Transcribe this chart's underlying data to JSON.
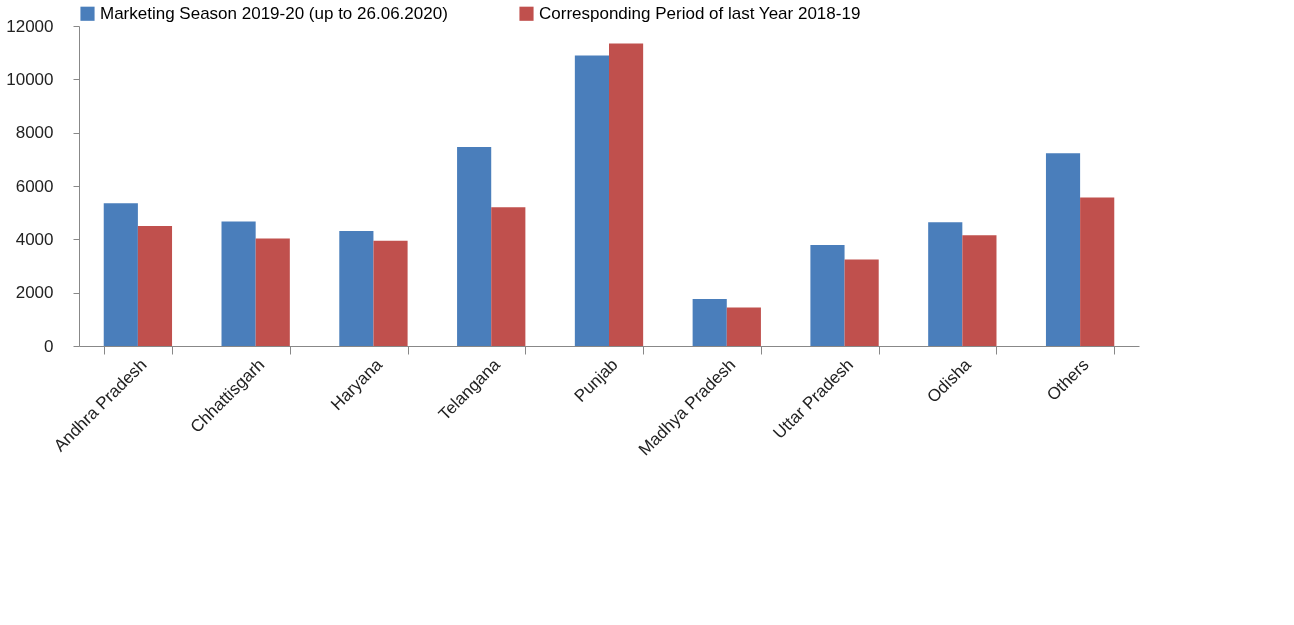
{
  "chart_data": {
    "type": "bar",
    "categories": [
      "Andhra Pradesh",
      "Chhattisgarh",
      "Haryana",
      "Telangana",
      "Punjab",
      "Madhya Pradesh",
      "Uttar Pradesh",
      "Odisha",
      "Others"
    ],
    "series": [
      {
        "name": "Marketing Season 2019-20 (up to 26.06.2020)",
        "color": "#4a7ebb",
        "values": [
          5350,
          4670,
          4310,
          7460,
          10890,
          1760,
          3790,
          4640,
          7230
        ]
      },
      {
        "name": "Corresponding Period of last Year 2018-19",
        "color": "#c0504d",
        "values": [
          4500,
          4030,
          3950,
          5200,
          11340,
          1440,
          3240,
          4150,
          5570
        ]
      }
    ],
    "ylim": [
      0,
      12000
    ],
    "yticks": [
      0,
      2000,
      4000,
      6000,
      8000,
      10000,
      12000
    ],
    "grid": false,
    "legend": "top"
  }
}
